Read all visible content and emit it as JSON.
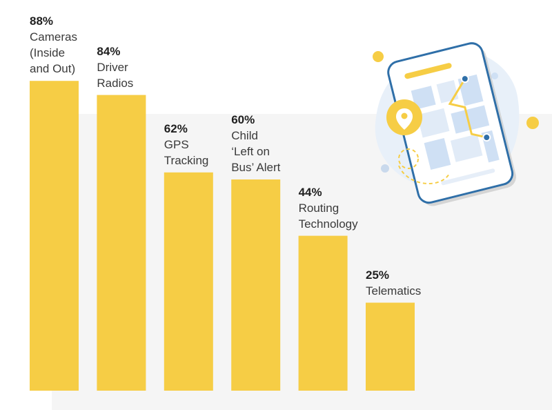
{
  "chart_data": {
    "type": "bar",
    "categories": [
      [
        "Cameras",
        "(Inside",
        "and Out)"
      ],
      [
        "Driver",
        "Radios"
      ],
      [
        "GPS",
        "Tracking"
      ],
      [
        "Child",
        "‘Left on",
        "Bus’ Alert"
      ],
      [
        "Routing",
        "Technology"
      ],
      [
        "Telematics"
      ]
    ],
    "values": [
      88,
      84,
      62,
      60,
      44,
      25
    ],
    "value_labels": [
      "88%",
      "84%",
      "62%",
      "60%",
      "44%",
      "25%"
    ],
    "ylim": [
      0,
      100
    ],
    "title": "",
    "xlabel": "",
    "ylabel": "",
    "grid": false,
    "legend": "none",
    "bar_color": "#f6cd45"
  },
  "illustration": {
    "icon": "phone-map-location-icon",
    "colors": {
      "phone_outline": "#2f6fa8",
      "accent": "#f6cd45",
      "map_blocks": "#cfe0f4",
      "blob": "#e8f0f9",
      "marker_dot": "#2f6fa8"
    }
  }
}
